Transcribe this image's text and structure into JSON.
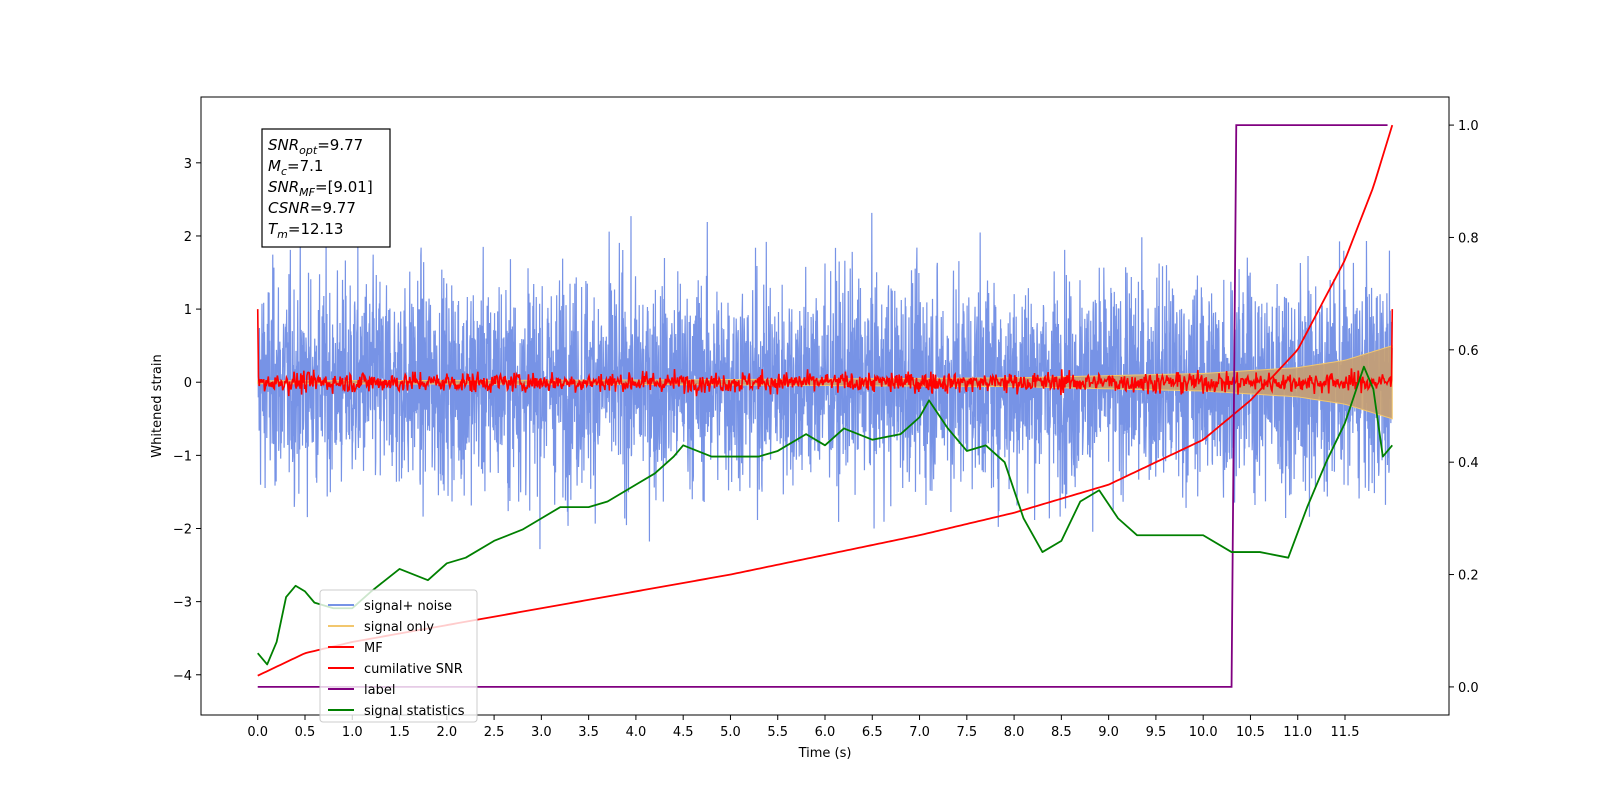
{
  "chart_data": {
    "type": "line",
    "xlabel": "Time (s)",
    "ylabel": "Whitened strain",
    "xlim": [
      -0.6,
      12.6
    ],
    "ylim": [
      -4.55,
      3.9
    ],
    "ylim_right": [
      -0.05,
      1.05
    ],
    "x_ticks": [
      0.0,
      0.5,
      1.0,
      1.5,
      2.0,
      2.5,
      3.0,
      3.5,
      4.0,
      4.5,
      5.0,
      5.5,
      6.0,
      6.5,
      7.0,
      7.5,
      8.0,
      8.5,
      9.0,
      9.5,
      10.0,
      10.5,
      11.0,
      11.5
    ],
    "x_tick_labels": [
      "0.0",
      "0.5",
      "1.0",
      "1.5",
      "2.0",
      "2.5",
      "3.0",
      "3.5",
      "4.0",
      "4.5",
      "5.0",
      "5.5",
      "6.0",
      "6.5",
      "7.0",
      "7.5",
      "8.0",
      "8.5",
      "9.0",
      "9.5",
      "10.0",
      "10.5",
      "11.0",
      "11.5"
    ],
    "y_ticks": [
      3,
      2,
      1,
      0,
      -1,
      -2,
      -3,
      -4
    ],
    "y_tick_labels": [
      "3",
      "2",
      "1",
      "0",
      "−1",
      "−2",
      "−3",
      "−4"
    ],
    "y_right_ticks": [
      1.0,
      0.8,
      0.6,
      0.4,
      0.2,
      0.0
    ],
    "y_right_tick_labels": [
      "1.0",
      "0.8",
      "0.6",
      "0.4",
      "0.2",
      "0.0"
    ],
    "grid": false,
    "legend_position": "lower-left",
    "info_box": [
      {
        "main": "SNR",
        "sub": "opt",
        "rest": "=9.77"
      },
      {
        "main": "M",
        "sub": "c",
        "rest": "=7.1"
      },
      {
        "main": "SNR",
        "sub": "MF",
        "rest": "=[9.01]"
      },
      {
        "main": "CSNR",
        "sub": "",
        "rest": "=9.77"
      },
      {
        "main": "T",
        "sub": "m",
        "rest": "=12.13"
      }
    ],
    "series": [
      {
        "name": "signal+ noise",
        "color": "#7793e6",
        "axis": "left",
        "style": "noise",
        "std": 0.9,
        "noise_min": -4.15,
        "noise_max": 3.5,
        "t_start": 0.0,
        "t_end": 12.0
      },
      {
        "name": "signal only",
        "color": "#f2c76e",
        "axis": "left",
        "style": "envelope",
        "x": [
          0.0,
          4.0,
          8.0,
          10.0,
          11.0,
          11.5,
          12.0
        ],
        "amplitude": [
          0.02,
          0.03,
          0.06,
          0.12,
          0.2,
          0.3,
          0.5
        ]
      },
      {
        "name": "MF",
        "color": "#ff0000",
        "axis": "left",
        "style": "noise",
        "std": 0.07,
        "start_value": 1.0,
        "end_value": 1.0,
        "t_start": 0.0,
        "t_end": 12.0
      },
      {
        "name": "cumilative SNR",
        "color": "#ff0000",
        "axis": "right",
        "x": [
          0.0,
          0.5,
          1.0,
          2.0,
          3.0,
          4.0,
          5.0,
          6.0,
          7.0,
          8.0,
          9.0,
          10.0,
          10.5,
          11.0,
          11.5,
          11.8,
          12.0
        ],
        "values": [
          0.02,
          0.06,
          0.08,
          0.11,
          0.14,
          0.17,
          0.2,
          0.235,
          0.27,
          0.31,
          0.36,
          0.44,
          0.51,
          0.6,
          0.76,
          0.89,
          1.0
        ]
      },
      {
        "name": "label",
        "color": "#800080",
        "axis": "right",
        "x": [
          0.0,
          10.3,
          10.35,
          11.95
        ],
        "values": [
          0.0,
          0.0,
          1.0,
          1.0
        ]
      },
      {
        "name": "signal statistics",
        "color": "#008000",
        "axis": "right",
        "x": [
          0.0,
          0.1,
          0.2,
          0.3,
          0.4,
          0.5,
          0.6,
          0.8,
          1.0,
          1.2,
          1.5,
          1.8,
          2.0,
          2.2,
          2.5,
          2.8,
          3.0,
          3.2,
          3.5,
          3.7,
          4.0,
          4.2,
          4.4,
          4.5,
          4.8,
          5.0,
          5.3,
          5.5,
          5.8,
          6.0,
          6.2,
          6.5,
          6.8,
          7.0,
          7.1,
          7.3,
          7.5,
          7.7,
          7.9,
          8.1,
          8.3,
          8.5,
          8.7,
          8.9,
          9.1,
          9.3,
          9.5,
          9.7,
          10.0,
          10.3,
          10.6,
          10.9,
          11.1,
          11.3,
          11.5,
          11.7,
          11.8,
          11.9,
          12.0
        ],
        "values": [
          0.06,
          0.04,
          0.08,
          0.16,
          0.18,
          0.17,
          0.15,
          0.14,
          0.14,
          0.17,
          0.21,
          0.19,
          0.22,
          0.23,
          0.26,
          0.28,
          0.3,
          0.32,
          0.32,
          0.33,
          0.36,
          0.38,
          0.41,
          0.43,
          0.41,
          0.41,
          0.41,
          0.42,
          0.45,
          0.43,
          0.46,
          0.44,
          0.45,
          0.48,
          0.51,
          0.46,
          0.42,
          0.43,
          0.4,
          0.3,
          0.24,
          0.26,
          0.33,
          0.35,
          0.3,
          0.27,
          0.27,
          0.27,
          0.27,
          0.24,
          0.24,
          0.23,
          0.32,
          0.4,
          0.47,
          0.57,
          0.53,
          0.41,
          0.43
        ]
      }
    ]
  }
}
